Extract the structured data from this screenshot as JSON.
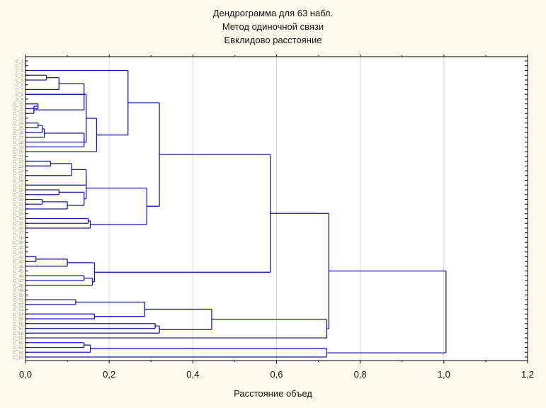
{
  "chart_data": {
    "type": "dendrogram",
    "title": [
      "Дендрограмма для 63 набл.",
      "Метод одиночной связи",
      "Евклидово расстояние"
    ],
    "xlabel": "Расстояние объед",
    "ylabel": "",
    "xlim": [
      0,
      1.2
    ],
    "xticks": [
      "0,0",
      "0,2",
      "0,4",
      "0,6",
      "0,8",
      "1,0",
      "1,2"
    ],
    "xtick_values": [
      0,
      0.2,
      0.4,
      0.6,
      0.8,
      1.0,
      1.2
    ],
    "grid": true,
    "n_leaves": 63,
    "leaf_label_prefix": "C_",
    "line_color": "#1a1ab4",
    "merges": [
      [
        0,
        1,
        0.0
      ],
      [
        3,
        4,
        0.05
      ],
      [
        3,
        6,
        0.08
      ],
      [
        3,
        7,
        0.14
      ],
      [
        9,
        10,
        0.03
      ],
      [
        9,
        11,
        0.02
      ],
      [
        9,
        7,
        0.14
      ],
      [
        13,
        14,
        0.03
      ],
      [
        13,
        15,
        0.04
      ],
      [
        13,
        16,
        0.045
      ],
      [
        13,
        17,
        0.14
      ],
      [
        13,
        18,
        0.14
      ],
      [
        13,
        7,
        0.145
      ],
      [
        13,
        19,
        0.17
      ],
      [
        2,
        13,
        0.245
      ],
      [
        21,
        22,
        0.06
      ],
      [
        21,
        24,
        0.11
      ],
      [
        21,
        26,
        0.145
      ],
      [
        27,
        28,
        0.08
      ],
      [
        29,
        30,
        0.04
      ],
      [
        29,
        31,
        0.1
      ],
      [
        27,
        29,
        0.14
      ],
      [
        21,
        27,
        0.145
      ],
      [
        33,
        34,
        0.15
      ],
      [
        33,
        35,
        0.155
      ],
      [
        21,
        33,
        0.29
      ],
      [
        2,
        21,
        0.32
      ],
      [
        41,
        42,
        0.025
      ],
      [
        41,
        43,
        0.1
      ],
      [
        45,
        46,
        0.14
      ],
      [
        45,
        47,
        0.16
      ],
      [
        41,
        45,
        0.165
      ],
      [
        2,
        41,
        0.585
      ],
      [
        50,
        51,
        0.12
      ],
      [
        53,
        54,
        0.165
      ],
      [
        50,
        53,
        0.285
      ],
      [
        55,
        56,
        0.31
      ],
      [
        55,
        57,
        0.32
      ],
      [
        50,
        55,
        0.445
      ],
      [
        50,
        58,
        0.72
      ],
      [
        59,
        60,
        0.14
      ],
      [
        59,
        61,
        0.155
      ],
      [
        59,
        62,
        0.72
      ],
      [
        2,
        50,
        0.725
      ],
      [
        2,
        59,
        1.005
      ]
    ]
  }
}
